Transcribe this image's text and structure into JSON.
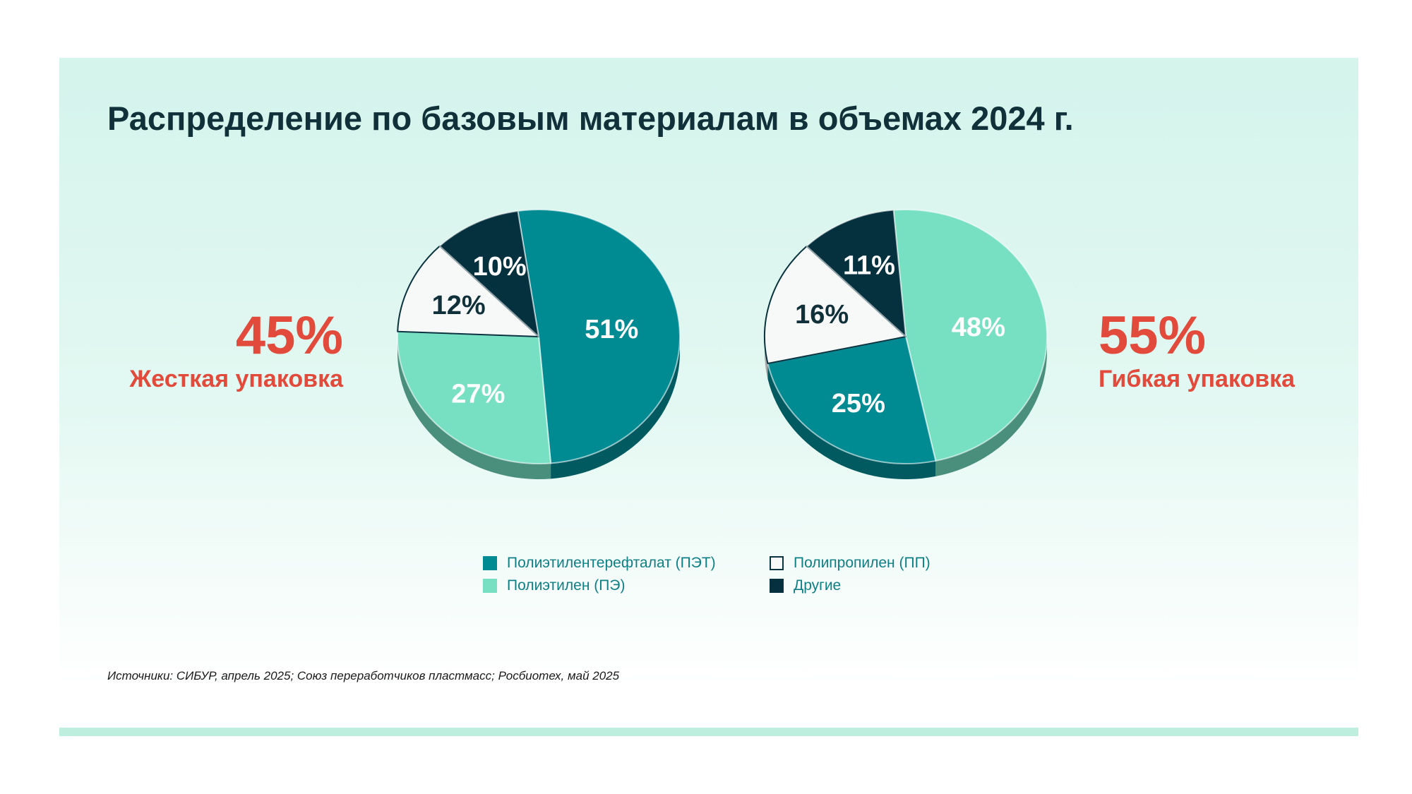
{
  "title": "Распределение по базовым материалам в объемах 2024 г.",
  "colors": {
    "pet": "#008b93",
    "pe": "#78e0c2",
    "pp": "#f7f8f8",
    "other": "#05303e",
    "accent": "#e24a3b",
    "title": "#10303a",
    "legend_text": "#0f7f86"
  },
  "left": {
    "percent": "45%",
    "label": "Жесткая упаковка"
  },
  "right": {
    "percent": "55%",
    "label": "Гибкая упаковка"
  },
  "legend": [
    {
      "key": "pet",
      "label": "Полиэтилентерефталат (ПЭТ)"
    },
    {
      "key": "pp",
      "label": "Полипропилен (ПП)"
    },
    {
      "key": "pe",
      "label": "Полиэтилен (ПЭ)"
    },
    {
      "key": "other",
      "label": "Другие"
    }
  ],
  "source": "Источники: СИБУР, апрель 2025; Союз переработчиков пластмасс; Росбиотех, май 2025",
  "chart_data": [
    {
      "type": "pie",
      "title": "Жесткая упаковка",
      "slices": [
        {
          "key": "pet",
          "label": "51%",
          "value": 51
        },
        {
          "key": "pe",
          "label": "27%",
          "value": 27
        },
        {
          "key": "pp",
          "label": "12%",
          "value": 12
        },
        {
          "key": "other",
          "label": "10%",
          "value": 10
        }
      ]
    },
    {
      "type": "pie",
      "title": "Гибкая упаковка",
      "slices": [
        {
          "key": "pe",
          "label": "48%",
          "value": 48
        },
        {
          "key": "pet",
          "label": "25%",
          "value": 25
        },
        {
          "key": "pp",
          "label": "16%",
          "value": 16
        },
        {
          "key": "other",
          "label": "11%",
          "value": 11
        }
      ]
    }
  ]
}
